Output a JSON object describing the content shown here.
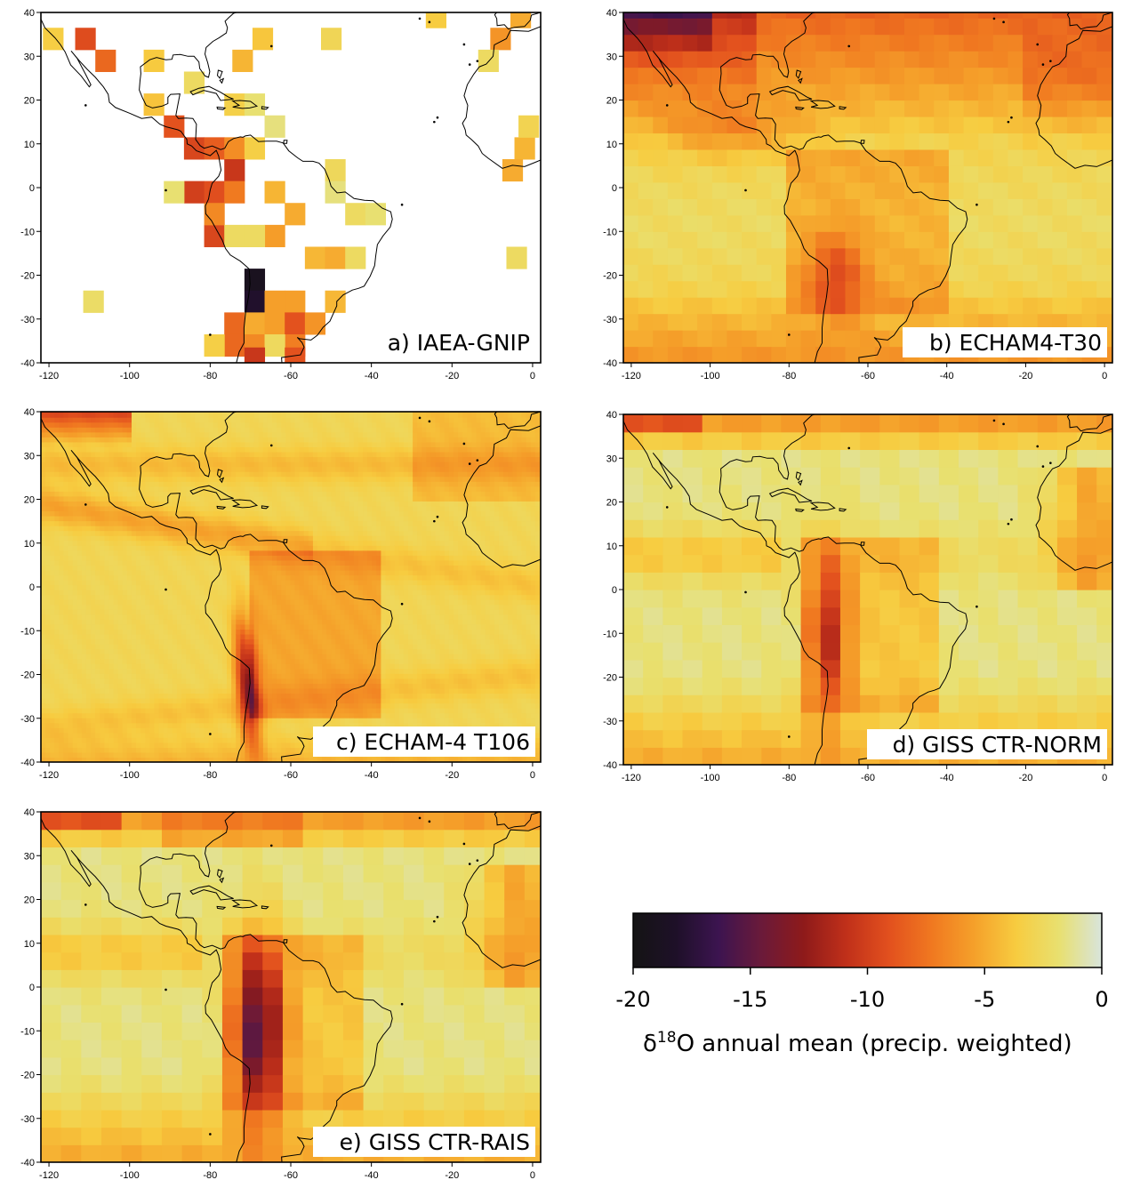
{
  "panels": [
    {
      "id": "a",
      "label": "a) IAEA-GNIP",
      "type": "sparse"
    },
    {
      "id": "b",
      "label": "b) ECHAM4-T30",
      "type": "coarse"
    },
    {
      "id": "c",
      "label": "c) ECHAM-4 T106",
      "type": "fine"
    },
    {
      "id": "d",
      "label": "d) GISS CTR-NORM",
      "type": "giss"
    },
    {
      "id": "e",
      "label": "e) GISS CTR-RAIS",
      "type": "giss2"
    }
  ],
  "axes": {
    "x_ticks": [
      "-120",
      "-100",
      "-80",
      "-60",
      "-40",
      "-20",
      "0"
    ],
    "y_ticks": [
      "40",
      "30",
      "20",
      "10",
      "0",
      "-10",
      "-20",
      "-30",
      "-40"
    ],
    "x_range": [
      -122,
      2
    ],
    "y_range": [
      -40,
      40
    ]
  },
  "colorbar": {
    "ticks": [
      "-20",
      "-15",
      "-10",
      "-5",
      "0"
    ],
    "range": [
      -20,
      0
    ],
    "title_prefix": "δ",
    "title_sup": "18",
    "title_suffix": "O annual mean (precip. weighted)",
    "colors": [
      "#141414",
      "#1e1028",
      "#3c1450",
      "#6a1a3a",
      "#8e1a1a",
      "#c0301a",
      "#e2501e",
      "#f07820",
      "#f5a02a",
      "#f7cc40",
      "#e8e070",
      "#d8e4dc"
    ]
  },
  "chart_data": {
    "type": "heatmap",
    "title": "",
    "xlabel": "",
    "ylabel": "",
    "x_ticks": [
      -120,
      -100,
      -80,
      -60,
      -40,
      -20,
      0
    ],
    "y_ticks": [
      40,
      30,
      20,
      10,
      0,
      -10,
      -20,
      -30,
      -40
    ],
    "xlim": [
      -122,
      2
    ],
    "ylim": [
      -40,
      40
    ],
    "colorbar_range": [
      -20,
      0
    ],
    "series": [
      {
        "name": "a) IAEA-GNIP"
      },
      {
        "name": "b) ECHAM4-T30"
      },
      {
        "name": "c) ECHAM-4 T106"
      },
      {
        "name": "d) GISS CTR-NORM"
      },
      {
        "name": "e) GISS CTR-RAIS"
      }
    ]
  }
}
